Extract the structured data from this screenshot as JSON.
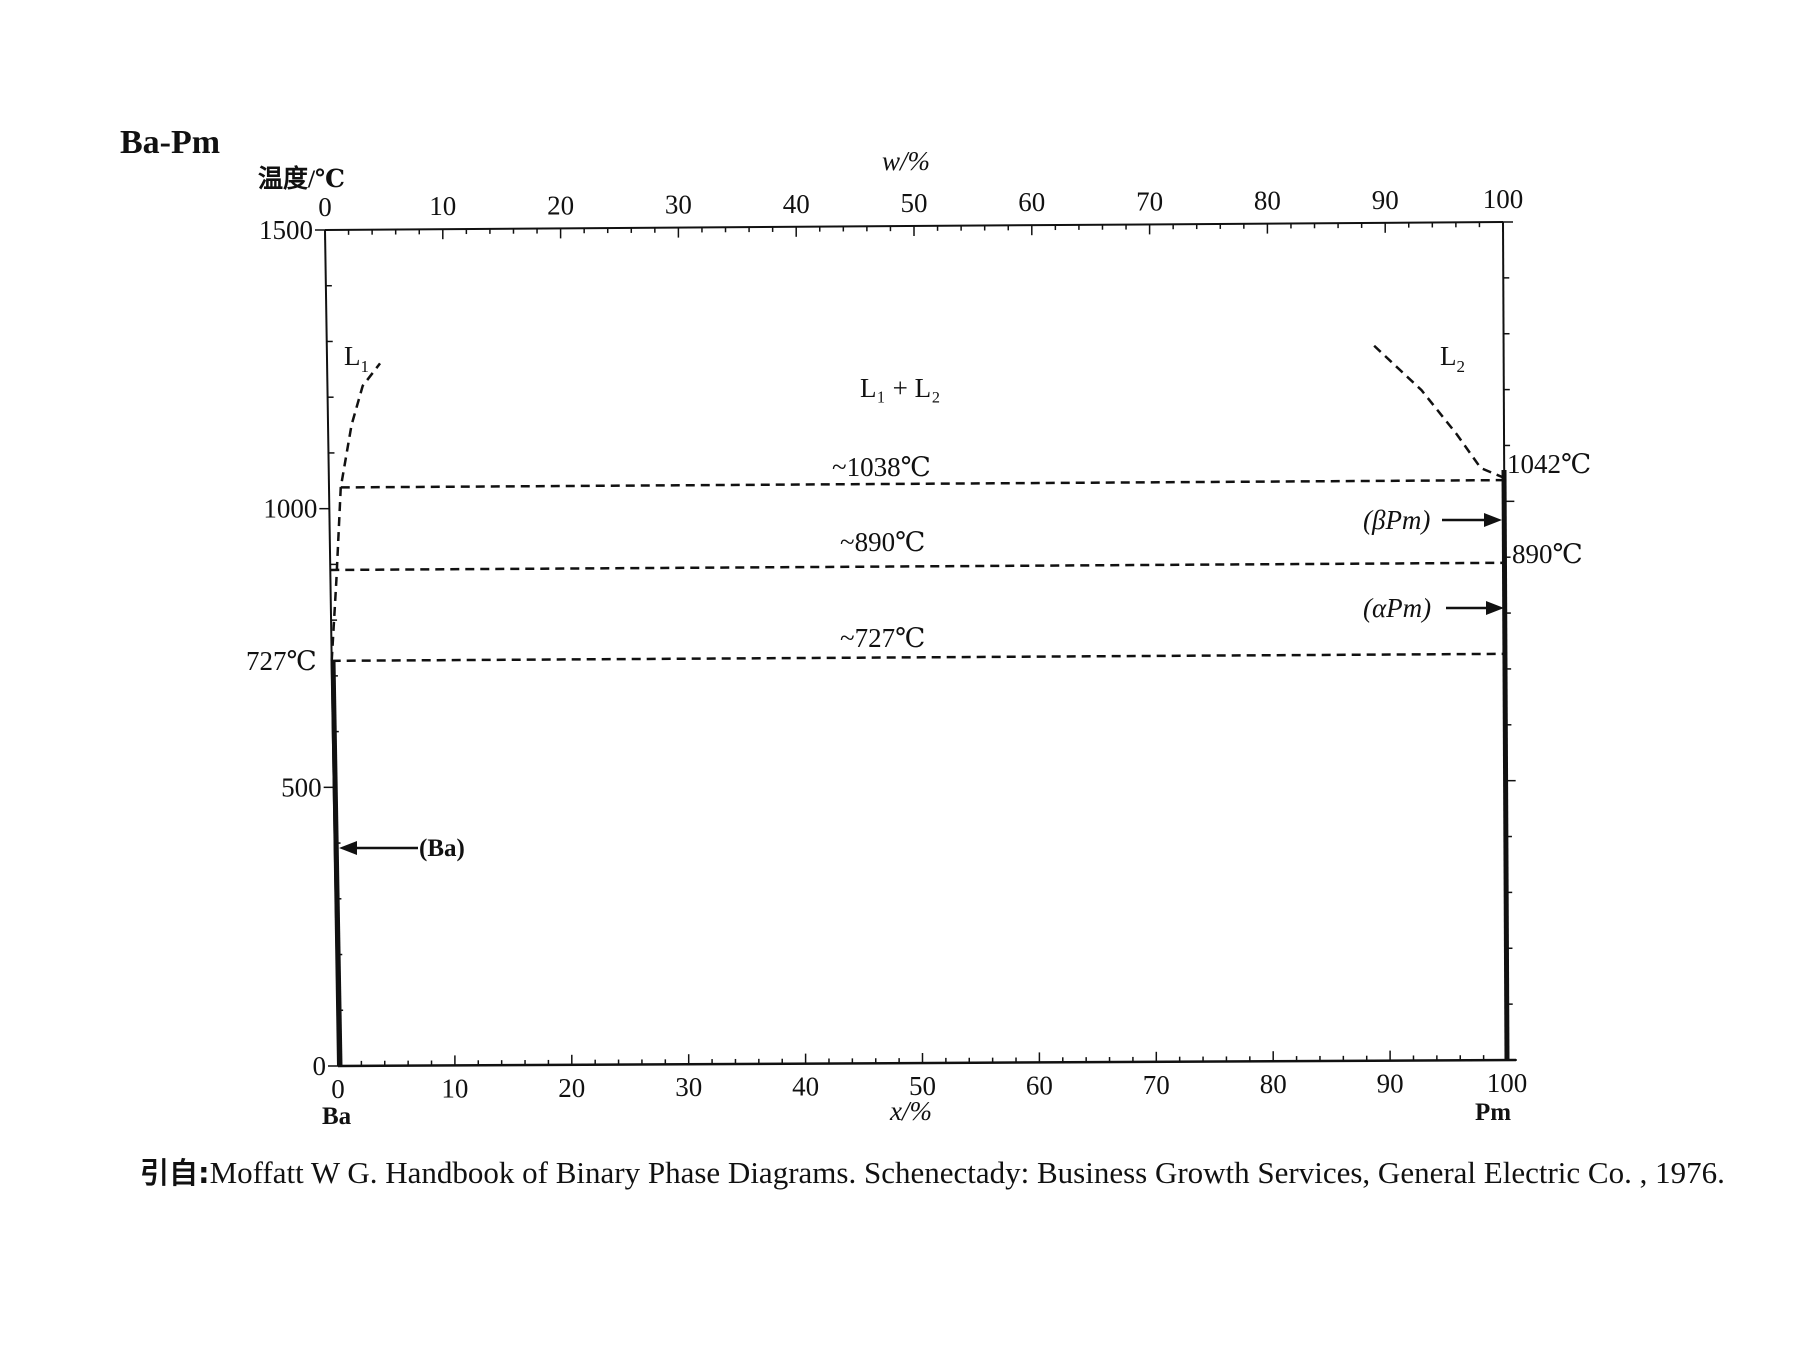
{
  "title": "Ba-Pm",
  "y_axis_label": "温度/℃",
  "top_axis_label": "w/%",
  "bottom_axis_label": "x/%",
  "left_element": "Ba",
  "right_element": "Pm",
  "y_ticks": [
    "1500",
    "1000",
    "500",
    "0"
  ],
  "x_ticks_bottom": [
    "0",
    "10",
    "20",
    "30",
    "40",
    "50",
    "60",
    "70",
    "80",
    "90",
    "100"
  ],
  "x_ticks_top": [
    "0",
    "10",
    "20",
    "30",
    "40",
    "50",
    "60",
    "70",
    "80",
    "90",
    "100"
  ],
  "labels": {
    "L1": "L",
    "L1_sub": "1",
    "L2": "L",
    "L2_sub": "2",
    "two_liquid": "L₁ + L₂",
    "iso_1038": "~1038℃",
    "iso_890": "~890℃",
    "iso_727": "~727℃",
    "ba_727": "727℃",
    "pm_1042": "1042℃",
    "pm_890": "890℃",
    "beta_pm": "(βPm)",
    "alpha_pm": "(αPm)",
    "ba_phase": "(Ba)"
  },
  "citation": {
    "prefix": "引自:",
    "text": "Moffatt W G.  Handbook of Binary Phase Diagrams.  Schenectady: Business Growth Services, General Electric Co. , 1976."
  },
  "chart_data": {
    "type": "line",
    "x_range": [
      0,
      100
    ],
    "y_range": [
      0,
      1500
    ],
    "isotherms": [
      {
        "label": "~1038℃",
        "y": 1038,
        "x_from": 1,
        "x_to": 100
      },
      {
        "label": "~890℃",
        "y": 890,
        "x_from": 0,
        "x_to": 100
      },
      {
        "label": "~727℃",
        "y": 727,
        "x_from": 0,
        "x_to": 100
      }
    ],
    "series": [
      {
        "name": "L₁",
        "style": "dashed",
        "x": [
          0,
          0.5,
          1,
          2,
          3,
          4.5
        ],
        "y": [
          727,
          870,
          1038,
          1150,
          1220,
          1260
        ]
      },
      {
        "name": "L₂",
        "style": "dashed",
        "x": [
          89,
          93,
          96,
          98,
          100
        ],
        "y": [
          1280,
          1200,
          1120,
          1060,
          1042
        ]
      }
    ]
  }
}
